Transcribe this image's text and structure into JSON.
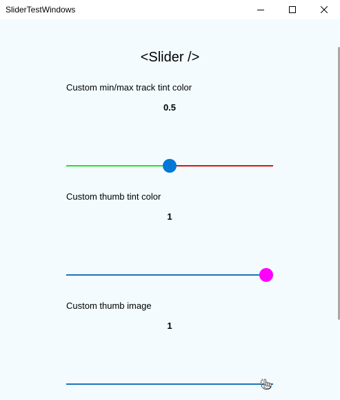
{
  "window": {
    "title": "SliderTestWindows",
    "minimize_icon": "minimize-icon",
    "maximize_icon": "maximize-icon",
    "close_icon": "close-icon"
  },
  "header": {
    "text": "<Slider />"
  },
  "sliders": [
    {
      "label": "Custom min/max track tint color",
      "value_text": "0.5",
      "value": 0.5,
      "min": 0,
      "max": 1,
      "min_track_color": "#1ee61e",
      "max_track_color": "#e01010",
      "thumb_color": "#0078d7"
    },
    {
      "label": "Custom thumb tint color",
      "value_text": "1",
      "value": 1,
      "min": 0,
      "max": 1,
      "min_track_color": "#1a73b8",
      "max_track_color": "#1a73b8",
      "thumb_color": "#ff00ff"
    },
    {
      "label": "Custom thumb image",
      "value_text": "1",
      "value": 1,
      "min": 0,
      "max": 1,
      "min_track_color": "#1a73b8",
      "max_track_color": "#1a73b8",
      "thumb_icon": "hand-pointer-icon"
    }
  ]
}
